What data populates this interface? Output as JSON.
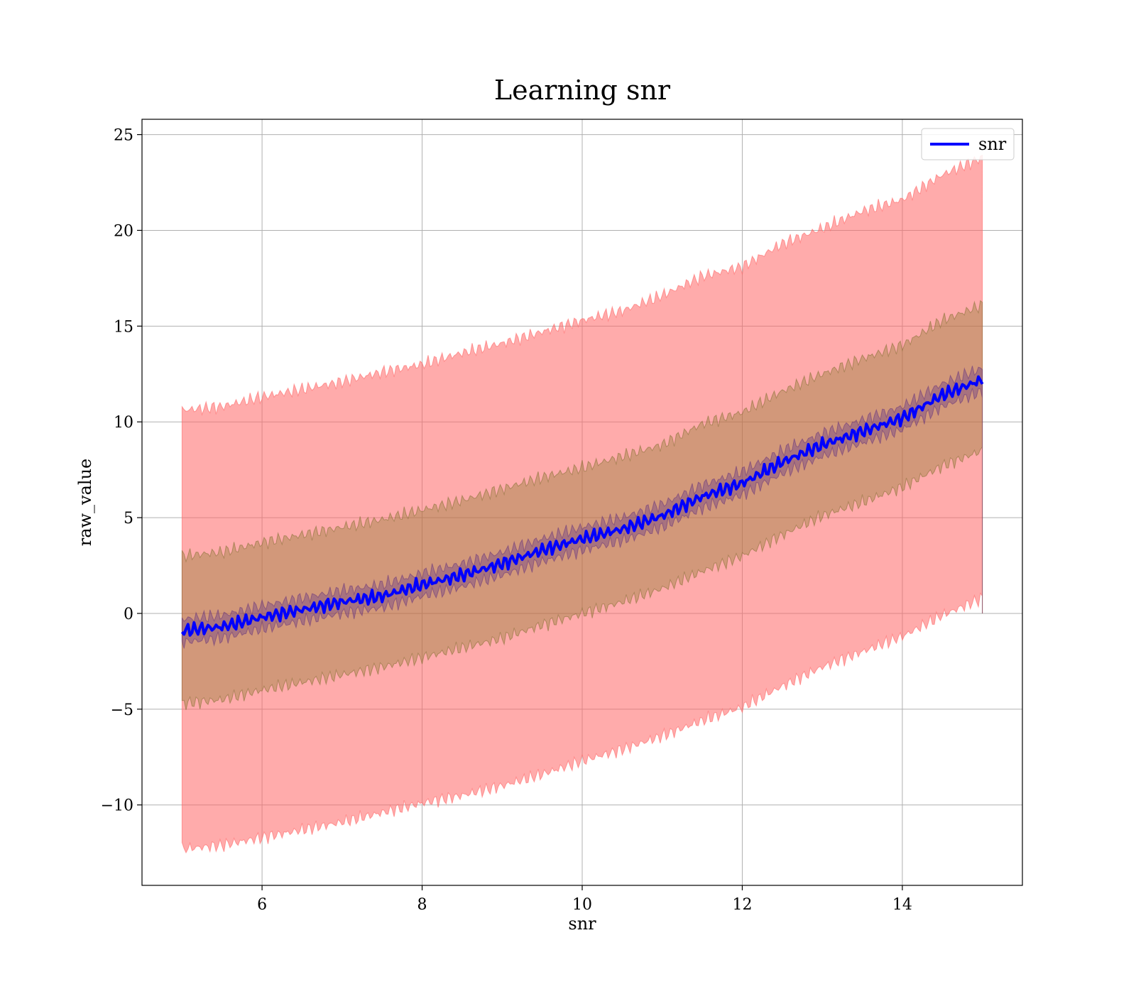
{
  "chart_data": {
    "type": "line",
    "title": "Learning snr",
    "xlabel": "snr",
    "ylabel": "raw_value",
    "xlim": [
      4.5,
      15.5
    ],
    "ylim": [
      -14.2,
      25.8
    ],
    "xticks": [
      6,
      8,
      10,
      12,
      14
    ],
    "xtick_labels": [
      "6",
      "8",
      "10",
      "12",
      "14"
    ],
    "yticks": [
      -10,
      -5,
      0,
      5,
      10,
      15,
      20,
      25
    ],
    "ytick_labels": [
      "−10",
      "−5",
      "0",
      "5",
      "10",
      "15",
      "20",
      "25"
    ],
    "grid": true,
    "legend_position": "top-right",
    "line_color": "#0000ff",
    "band_color": "#ff6666",
    "series": [
      {
        "name": "snr",
        "x": [
          5.0,
          5.5,
          6.0,
          6.5,
          7.0,
          7.5,
          8.0,
          8.5,
          9.0,
          9.5,
          10.0,
          10.5,
          11.0,
          11.5,
          12.0,
          12.5,
          13.0,
          13.5,
          14.0,
          14.5,
          15.0
        ],
        "mean": [
          -0.9,
          -0.7,
          -0.2,
          0.2,
          0.6,
          0.9,
          1.5,
          2.0,
          2.6,
          3.3,
          3.9,
          4.4,
          5.1,
          6.1,
          6.8,
          7.9,
          8.8,
          9.5,
          10.2,
          11.4,
          12.2
        ],
        "band_outer_upper": [
          10.6,
          10.8,
          11.3,
          11.7,
          12.1,
          12.6,
          13.0,
          13.6,
          14.1,
          14.7,
          15.3,
          15.8,
          16.6,
          17.6,
          18.1,
          19.3,
          20.1,
          21.0,
          21.6,
          22.9,
          23.8
        ],
        "band_outer_lower": [
          -12.3,
          -12.1,
          -11.7,
          -11.3,
          -10.9,
          -10.4,
          -9.9,
          -9.5,
          -9.0,
          -8.4,
          -7.7,
          -7.1,
          -6.4,
          -5.6,
          -4.9,
          -3.8,
          -2.8,
          -2.0,
          -1.2,
          -0.1,
          0.8
        ],
        "band_middle_upper": [
          3.0,
          3.2,
          3.7,
          4.1,
          4.5,
          4.9,
          5.4,
          5.9,
          6.5,
          7.1,
          7.6,
          8.2,
          8.8,
          9.9,
          10.5,
          11.6,
          12.5,
          13.3,
          14.0,
          15.3,
          16.1
        ],
        "band_middle_lower": [
          -4.7,
          -4.5,
          -4.0,
          -3.6,
          -3.2,
          -2.8,
          -2.3,
          -1.8,
          -1.3,
          -0.6,
          0.0,
          0.6,
          1.3,
          2.2,
          3.0,
          4.1,
          5.1,
          5.8,
          6.6,
          7.7,
          8.5
        ],
        "band_inner_upper": [
          -0.3,
          -0.1,
          0.4,
          0.8,
          1.2,
          1.5,
          2.1,
          2.6,
          3.2,
          3.9,
          4.5,
          5.0,
          5.7,
          6.7,
          7.4,
          8.5,
          9.4,
          10.1,
          10.8,
          12.0,
          12.8
        ],
        "band_inner_lower": [
          -1.5,
          -1.3,
          -0.8,
          -0.4,
          0.0,
          0.3,
          0.9,
          1.4,
          2.0,
          2.7,
          3.3,
          3.8,
          4.5,
          5.5,
          6.2,
          7.3,
          8.2,
          8.9,
          9.6,
          10.8,
          11.6
        ]
      }
    ]
  }
}
